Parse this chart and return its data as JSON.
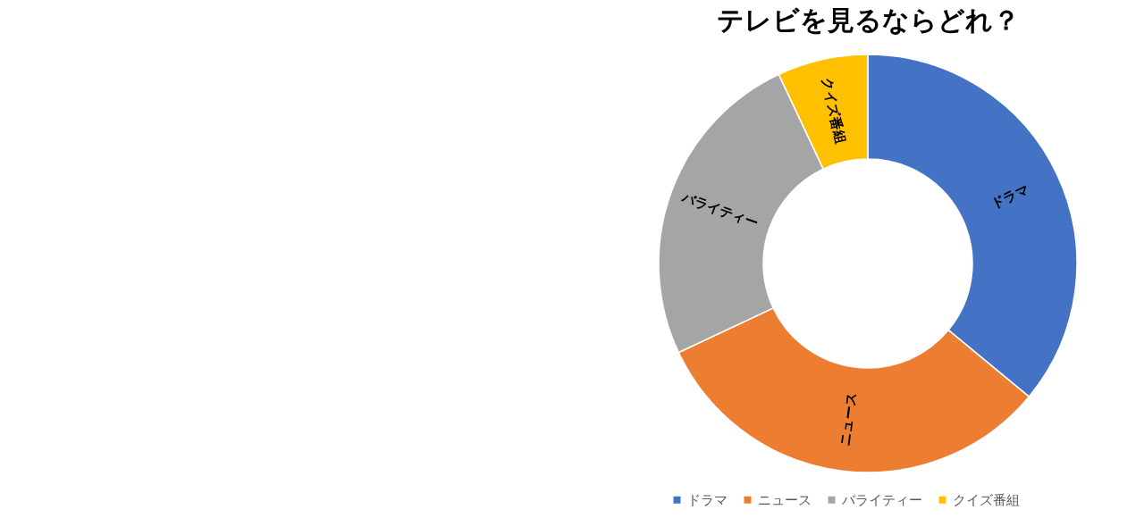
{
  "chart_data": {
    "type": "donut",
    "title": "テレビを見るならどれ？",
    "categories": [
      "ドラマ",
      "ニュース",
      "バライティー",
      "クイズ番組"
    ],
    "values": [
      36,
      32,
      25,
      7
    ],
    "colors": [
      "#4472c4",
      "#ed7d31",
      "#a5a5a5",
      "#ffc000"
    ],
    "legend": "bottom"
  }
}
